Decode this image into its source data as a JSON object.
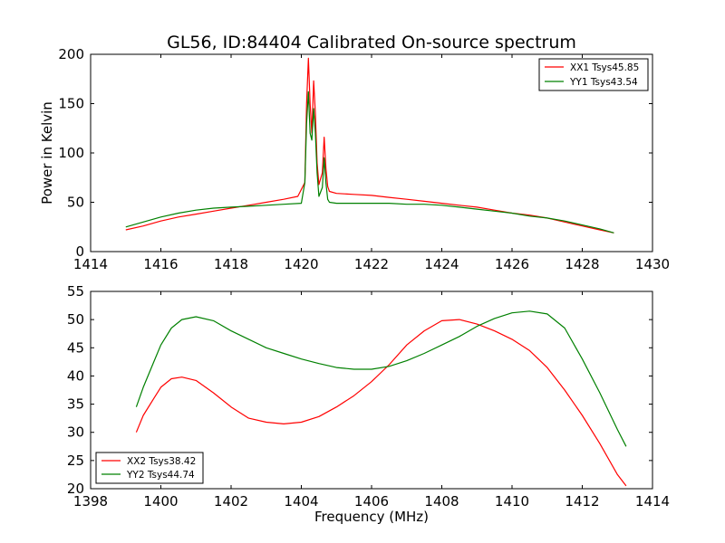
{
  "figure": {
    "title": "GL56, ID:84404 Calibrated On-source spectrum"
  },
  "chart_data": [
    {
      "type": "line",
      "title": "GL56, ID:84404 Calibrated On-source spectrum",
      "xlabel": "",
      "ylabel": "Power in Kelvin",
      "xlim": [
        1414,
        1430
      ],
      "ylim": [
        0,
        200
      ],
      "xticks": [
        "1414",
        "1416",
        "1418",
        "1420",
        "1422",
        "1424",
        "1426",
        "1428",
        "1430"
      ],
      "yticks": [
        "0",
        "50",
        "100",
        "150",
        "200"
      ],
      "grid": false,
      "legend_position": "top-right",
      "series": [
        {
          "name": "XX1 Tsys45.85",
          "color": "#ff0000",
          "x": [
            1415.0,
            1415.5,
            1416.0,
            1416.5,
            1417.0,
            1417.5,
            1418.0,
            1418.5,
            1419.0,
            1419.5,
            1419.9,
            1420.1,
            1420.15,
            1420.2,
            1420.25,
            1420.3,
            1420.35,
            1420.4,
            1420.45,
            1420.5,
            1420.6,
            1420.65,
            1420.7,
            1420.75,
            1420.8,
            1421.0,
            1421.5,
            1422.0,
            1422.5,
            1423.0,
            1423.5,
            1424.0,
            1424.5,
            1425.0,
            1425.5,
            1426.0,
            1426.5,
            1427.0,
            1427.5,
            1428.0,
            1428.5,
            1428.9
          ],
          "values": [
            22,
            26,
            31,
            35,
            38,
            41,
            44,
            47,
            50,
            53,
            56,
            70,
            150,
            196,
            150,
            120,
            173,
            140,
            90,
            68,
            80,
            116,
            85,
            66,
            61,
            59,
            58,
            57,
            55,
            53,
            51,
            49,
            47,
            45,
            42,
            39,
            37,
            34,
            30,
            26,
            22,
            19
          ]
        },
        {
          "name": "YY1 Tsys43.54",
          "color": "#008000",
          "x": [
            1415.0,
            1415.5,
            1416.0,
            1416.5,
            1417.0,
            1417.5,
            1418.0,
            1418.5,
            1419.0,
            1419.5,
            1420.0,
            1420.1,
            1420.15,
            1420.2,
            1420.25,
            1420.3,
            1420.35,
            1420.4,
            1420.45,
            1420.5,
            1420.6,
            1420.65,
            1420.7,
            1420.75,
            1420.8,
            1421.0,
            1421.5,
            1422.0,
            1422.5,
            1423.0,
            1423.5,
            1424.0,
            1424.5,
            1425.0,
            1425.5,
            1426.0,
            1426.5,
            1427.0,
            1427.5,
            1428.0,
            1428.5,
            1428.9
          ],
          "values": [
            25,
            30,
            35,
            39,
            42,
            44,
            45,
            46,
            47,
            48,
            49,
            70,
            130,
            162,
            120,
            113,
            145,
            120,
            80,
            56,
            65,
            95,
            70,
            53,
            50,
            49,
            49,
            49,
            49,
            48,
            48,
            47,
            45,
            43,
            41,
            39,
            36,
            34,
            31,
            27,
            23,
            19
          ]
        }
      ]
    },
    {
      "type": "line",
      "title": "",
      "xlabel": "Frequency (MHz)",
      "ylabel": "",
      "xlim": [
        1398,
        1414
      ],
      "ylim": [
        20,
        55
      ],
      "xticks": [
        "1398",
        "1400",
        "1402",
        "1404",
        "1406",
        "1408",
        "1410",
        "1412",
        "1414"
      ],
      "yticks": [
        "20",
        "25",
        "30",
        "35",
        "40",
        "45",
        "50",
        "55"
      ],
      "grid": false,
      "legend_position": "bottom-left",
      "series": [
        {
          "name": "XX2 Tsys38.42",
          "color": "#ff0000",
          "x": [
            1399.3,
            1399.5,
            1399.8,
            1400.0,
            1400.3,
            1400.6,
            1401.0,
            1401.5,
            1402.0,
            1402.5,
            1403.0,
            1403.5,
            1404.0,
            1404.5,
            1405.0,
            1405.5,
            1406.0,
            1406.5,
            1407.0,
            1407.5,
            1408.0,
            1408.5,
            1409.0,
            1409.5,
            1410.0,
            1410.5,
            1411.0,
            1411.5,
            1412.0,
            1412.5,
            1413.0,
            1413.25
          ],
          "values": [
            30,
            33,
            36,
            38,
            39.5,
            39.8,
            39.2,
            37,
            34.5,
            32.5,
            31.8,
            31.5,
            31.8,
            32.8,
            34.5,
            36.5,
            39,
            42,
            45.5,
            48,
            49.8,
            50,
            49.2,
            48,
            46.5,
            44.5,
            41.5,
            37.5,
            33,
            28,
            22.5,
            20.5
          ]
        },
        {
          "name": "YY2 Tsys44.74",
          "color": "#008000",
          "x": [
            1399.3,
            1399.5,
            1399.8,
            1400.0,
            1400.3,
            1400.6,
            1401.0,
            1401.5,
            1402.0,
            1402.5,
            1403.0,
            1403.5,
            1404.0,
            1404.5,
            1405.0,
            1405.5,
            1406.0,
            1406.5,
            1407.0,
            1407.5,
            1408.0,
            1408.5,
            1409.0,
            1409.5,
            1410.0,
            1410.5,
            1411.0,
            1411.5,
            1412.0,
            1412.5,
            1413.0,
            1413.25
          ],
          "values": [
            34.5,
            38,
            42.5,
            45.5,
            48.5,
            50,
            50.5,
            49.8,
            48,
            46.5,
            45,
            44,
            43,
            42.2,
            41.5,
            41.2,
            41.2,
            41.7,
            42.7,
            44,
            45.5,
            47,
            48.8,
            50.2,
            51.2,
            51.5,
            51,
            48.5,
            43,
            37,
            30.5,
            27.5
          ]
        }
      ]
    }
  ]
}
